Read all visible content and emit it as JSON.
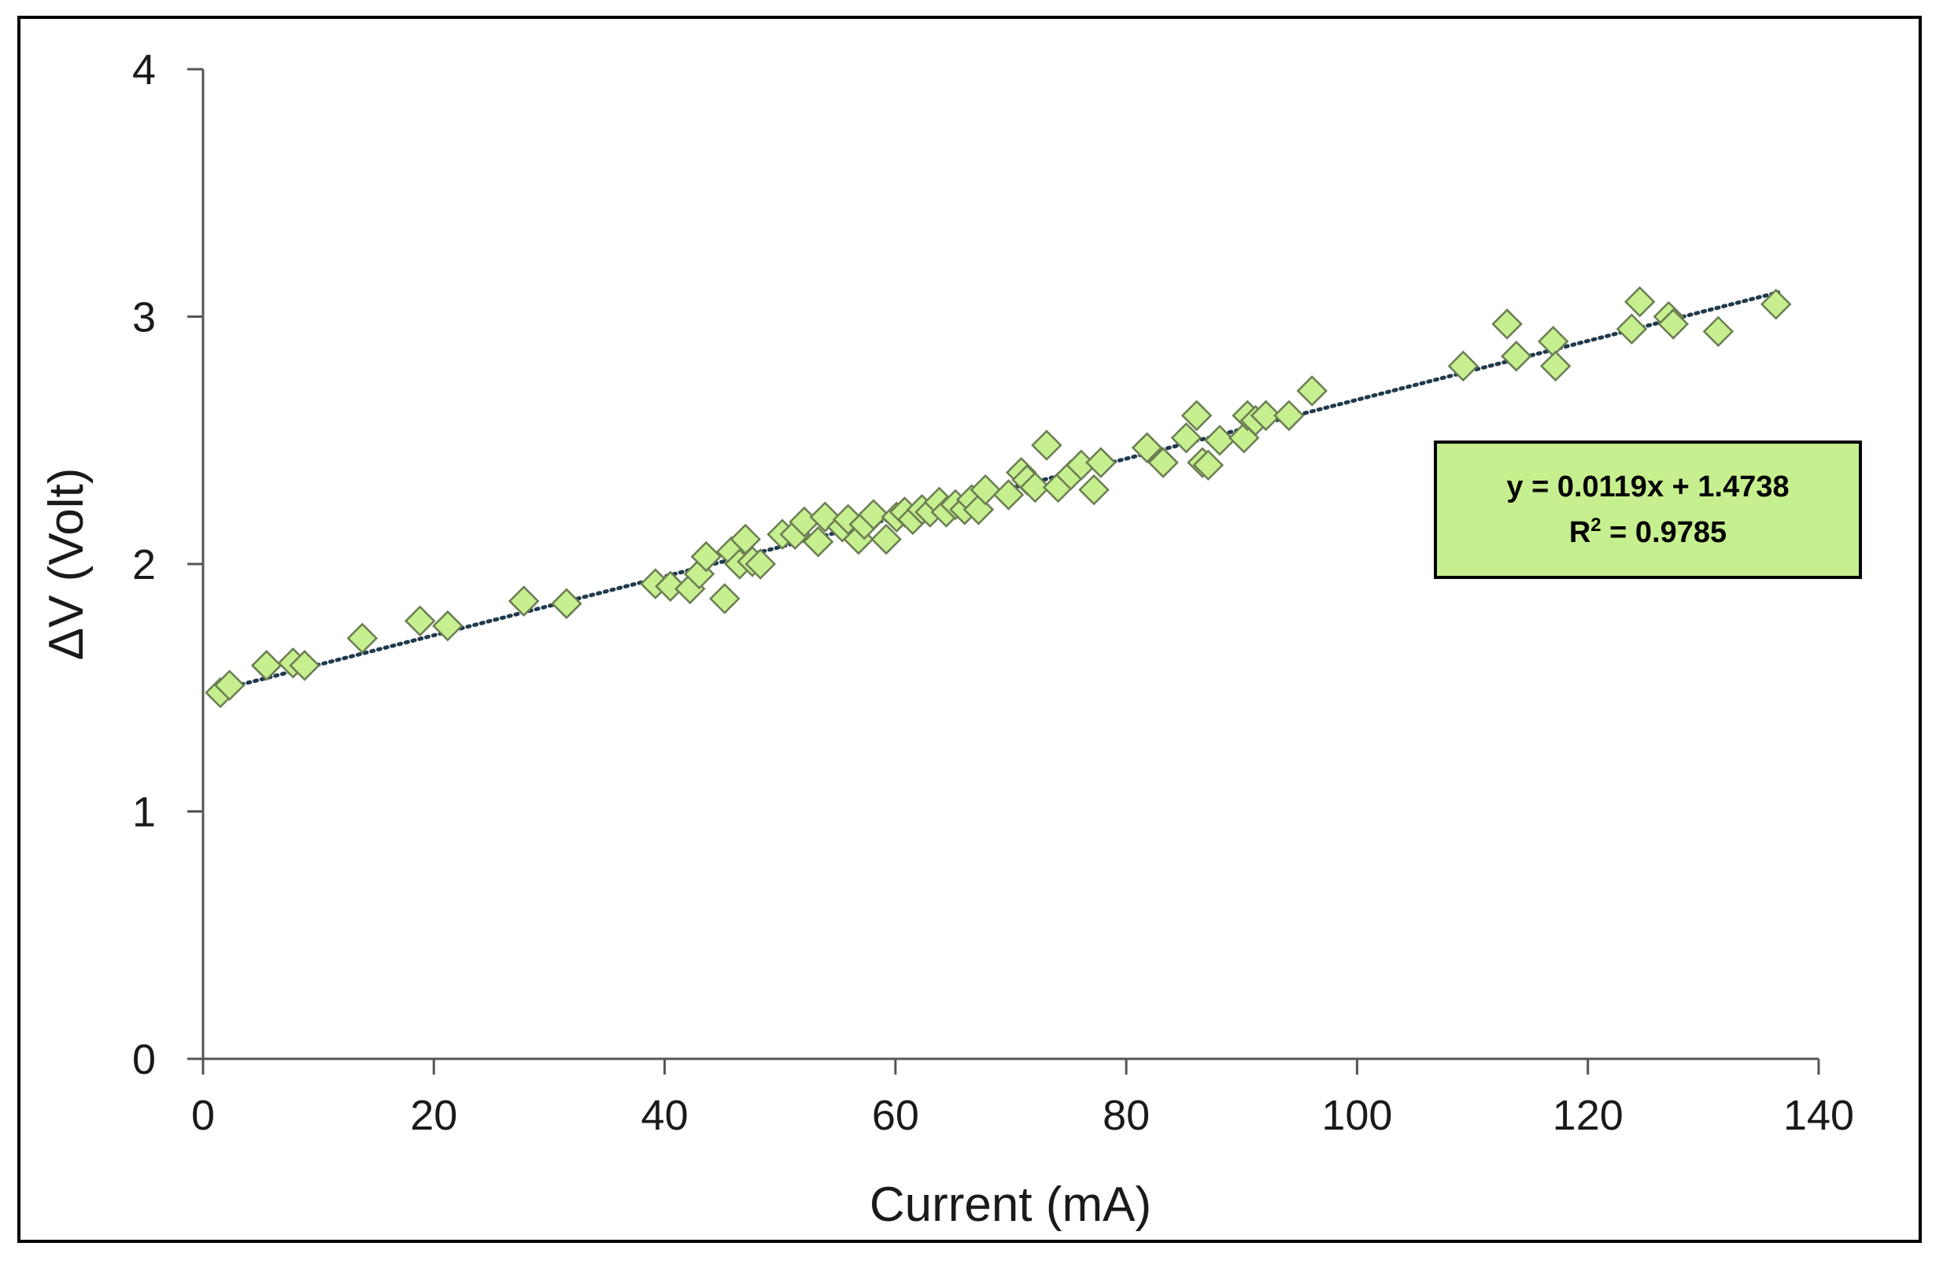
{
  "chart_data": {
    "type": "scatter",
    "title": "",
    "xlabel": "Current (mA)",
    "ylabel": "ΔV (Volt)",
    "xlim": [
      0,
      140
    ],
    "ylim": [
      0,
      4
    ],
    "x_ticks": [
      "0",
      "20",
      "40",
      "60",
      "80",
      "100",
      "120",
      "140"
    ],
    "y_ticks": [
      "0",
      "1",
      "2",
      "3",
      "4"
    ],
    "x_tick_values": [
      0,
      20,
      40,
      60,
      80,
      100,
      120,
      140
    ],
    "y_tick_values": [
      0,
      1,
      2,
      3,
      4
    ],
    "grid": false,
    "marker": "diamond",
    "marker_color": "#c6ef8f",
    "marker_edge_color": "#6b7d52",
    "trendline": {
      "type": "linear",
      "style": "dotted",
      "color": "#1f3a4d",
      "slope": 0.0119,
      "intercept": 1.4738,
      "x_range": [
        1.5,
        136.5
      ],
      "equation_label": "y = 0.0119x + 1.4738",
      "r2_prefix": "R",
      "r2_exponent": "2",
      "r2_suffix": " = 0.9785"
    },
    "points": [
      [
        1.5,
        1.48
      ],
      [
        2.3,
        1.51
      ],
      [
        5.5,
        1.59
      ],
      [
        7.8,
        1.6
      ],
      [
        8.8,
        1.59
      ],
      [
        13.8,
        1.7
      ],
      [
        18.8,
        1.77
      ],
      [
        21.2,
        1.75
      ],
      [
        27.8,
        1.85
      ],
      [
        31.5,
        1.84
      ],
      [
        39.2,
        1.92
      ],
      [
        40.5,
        1.91
      ],
      [
        42.2,
        1.9
      ],
      [
        43.0,
        1.96
      ],
      [
        43.6,
        2.03
      ],
      [
        45.2,
        1.86
      ],
      [
        45.8,
        2.05
      ],
      [
        46.5,
        2.0
      ],
      [
        47.0,
        2.1
      ],
      [
        47.6,
        2.01
      ],
      [
        48.3,
        2.0
      ],
      [
        50.2,
        2.12
      ],
      [
        51.3,
        2.12
      ],
      [
        52.1,
        2.17
      ],
      [
        53.3,
        2.09
      ],
      [
        53.9,
        2.19
      ],
      [
        55.4,
        2.15
      ],
      [
        55.9,
        2.18
      ],
      [
        56.8,
        2.1
      ],
      [
        57.3,
        2.16
      ],
      [
        58.1,
        2.2
      ],
      [
        59.2,
        2.1
      ],
      [
        60.1,
        2.19
      ],
      [
        60.8,
        2.21
      ],
      [
        61.5,
        2.18
      ],
      [
        62.3,
        2.22
      ],
      [
        63.0,
        2.21
      ],
      [
        63.8,
        2.25
      ],
      [
        64.4,
        2.21
      ],
      [
        65.2,
        2.24
      ],
      [
        66.0,
        2.22
      ],
      [
        66.6,
        2.26
      ],
      [
        67.2,
        2.22
      ],
      [
        67.8,
        2.3
      ],
      [
        69.8,
        2.28
      ],
      [
        70.9,
        2.37
      ],
      [
        71.4,
        2.34
      ],
      [
        72.1,
        2.31
      ],
      [
        73.1,
        2.48
      ],
      [
        74.1,
        2.31
      ],
      [
        75.2,
        2.36
      ],
      [
        76.1,
        2.4
      ],
      [
        77.2,
        2.3
      ],
      [
        77.8,
        2.41
      ],
      [
        81.8,
        2.47
      ],
      [
        83.2,
        2.41
      ],
      [
        85.2,
        2.51
      ],
      [
        86.1,
        2.6
      ],
      [
        86.6,
        2.41
      ],
      [
        87.1,
        2.4
      ],
      [
        88.1,
        2.5
      ],
      [
        90.2,
        2.51
      ],
      [
        90.5,
        2.6
      ],
      [
        91.2,
        2.58
      ],
      [
        92.1,
        2.6
      ],
      [
        94.1,
        2.6
      ],
      [
        96.1,
        2.7
      ],
      [
        109.2,
        2.8
      ],
      [
        113.0,
        2.97
      ],
      [
        113.8,
        2.84
      ],
      [
        117.0,
        2.9
      ],
      [
        117.2,
        2.8
      ],
      [
        123.8,
        2.95
      ],
      [
        124.5,
        3.06
      ],
      [
        127.0,
        3.0
      ],
      [
        127.4,
        2.97
      ],
      [
        131.3,
        2.94
      ],
      [
        136.3,
        3.05
      ]
    ]
  }
}
